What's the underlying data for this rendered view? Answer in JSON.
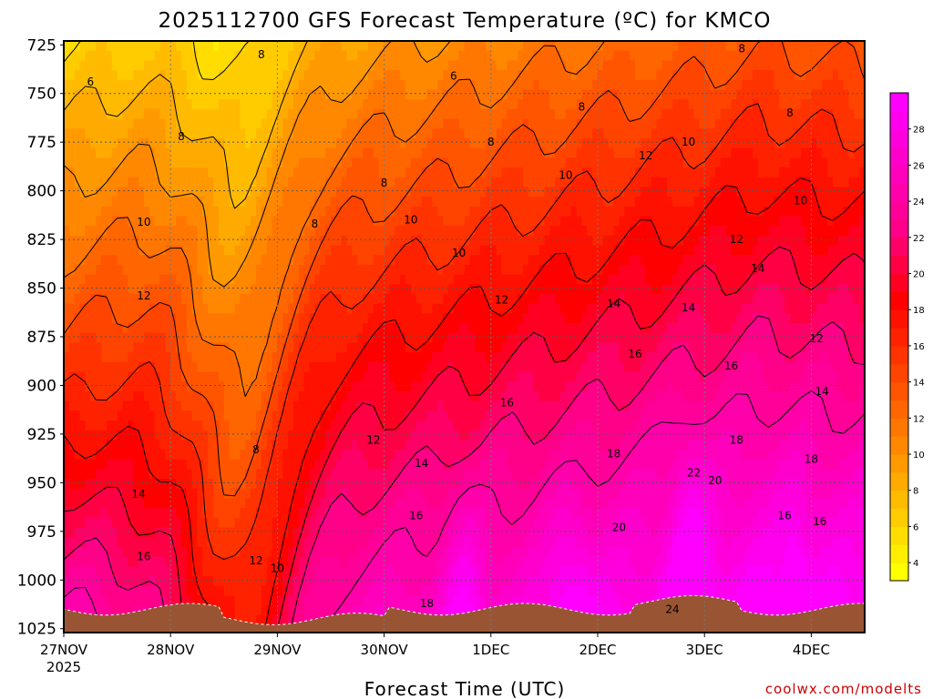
{
  "chart_data": {
    "type": "heatmap",
    "title": "2025112700 GFS Forecast Temperature (ºC) for KMCO",
    "xlabel": "Forecast Time (UTC)",
    "ylabel": "",
    "credit": "coolwx.com/modelts",
    "y_ticks": [
      "725",
      "750",
      "775",
      "800",
      "825",
      "850",
      "875",
      "900",
      "925",
      "950",
      "975",
      "1000",
      "1025"
    ],
    "y_values": [
      725,
      750,
      775,
      800,
      825,
      850,
      875,
      900,
      925,
      950,
      975,
      1000,
      1025
    ],
    "ylim": [
      1027,
      723
    ],
    "x_ticks": [
      "27NOV",
      "28NOV",
      "29NOV",
      "30NOV",
      "1DEC",
      "2DEC",
      "3DEC",
      "4DEC"
    ],
    "x_year": "2025",
    "xlim_days": [
      0,
      7.5
    ],
    "grid": true,
    "colorbar": {
      "ticks": [
        "4",
        "6",
        "8",
        "10",
        "12",
        "14",
        "16",
        "18",
        "20",
        "22",
        "24",
        "26",
        "28"
      ],
      "levels": [
        3,
        4,
        5,
        6,
        7,
        8,
        9,
        10,
        11,
        12,
        13,
        14,
        15,
        16,
        17,
        18,
        19,
        20,
        21,
        22,
        23,
        24,
        25,
        26,
        27,
        28,
        29,
        30
      ],
      "colors": [
        "#ffff00",
        "#ffee00",
        "#ffdd00",
        "#ffcc00",
        "#ffbb00",
        "#ffaa00",
        "#ff9900",
        "#ff8800",
        "#ff7700",
        "#ff6600",
        "#ff5500",
        "#ff4400",
        "#ff3300",
        "#ff2200",
        "#ff1100",
        "#ff0000",
        "#ff0022",
        "#ff0044",
        "#ff0066",
        "#ff0088",
        "#ff0099",
        "#ff00aa",
        "#ff00bb",
        "#ff00cc",
        "#ff00dd",
        "#ff00ee",
        "#ff00ff"
      ]
    },
    "ground_color": "#995533",
    "contour_labels": [
      {
        "t": 0.25,
        "p": 744,
        "v": "6"
      },
      {
        "t": 1.85,
        "p": 730,
        "v": "8"
      },
      {
        "t": 3.65,
        "p": 741,
        "v": "6"
      },
      {
        "t": 6.35,
        "p": 727,
        "v": "8"
      },
      {
        "t": 1.1,
        "p": 772,
        "v": "8"
      },
      {
        "t": 4.85,
        "p": 757,
        "v": "8"
      },
      {
        "t": 6.8,
        "p": 760,
        "v": "8"
      },
      {
        "t": 3.0,
        "p": 796,
        "v": "8"
      },
      {
        "t": 2.35,
        "p": 817,
        "v": "8"
      },
      {
        "t": 4.0,
        "p": 775,
        "v": "8"
      },
      {
        "t": 0.75,
        "p": 816,
        "v": "10"
      },
      {
        "t": 3.25,
        "p": 815,
        "v": "10"
      },
      {
        "t": 4.7,
        "p": 792,
        "v": "10"
      },
      {
        "t": 5.85,
        "p": 775,
        "v": "10"
      },
      {
        "t": 6.9,
        "p": 805,
        "v": "10"
      },
      {
        "t": 3.7,
        "p": 832,
        "v": "10"
      },
      {
        "t": 0.75,
        "p": 854,
        "v": "12"
      },
      {
        "t": 5.45,
        "p": 782,
        "v": "12"
      },
      {
        "t": 6.3,
        "p": 825,
        "v": "12"
      },
      {
        "t": 4.1,
        "p": 856,
        "v": "12"
      },
      {
        "t": 7.05,
        "p": 876,
        "v": "12"
      },
      {
        "t": 2.9,
        "p": 928,
        "v": "12"
      },
      {
        "t": 5.15,
        "p": 858,
        "v": "14"
      },
      {
        "t": 5.85,
        "p": 860,
        "v": "14"
      },
      {
        "t": 6.5,
        "p": 840,
        "v": "14"
      },
      {
        "t": 3.35,
        "p": 940,
        "v": "14"
      },
      {
        "t": 0.7,
        "p": 956,
        "v": "14"
      },
      {
        "t": 7.1,
        "p": 903,
        "v": "14"
      },
      {
        "t": 5.35,
        "p": 884,
        "v": "16"
      },
      {
        "t": 6.25,
        "p": 890,
        "v": "16"
      },
      {
        "t": 4.15,
        "p": 909,
        "v": "16"
      },
      {
        "t": 3.3,
        "p": 967,
        "v": "16"
      },
      {
        "t": 0.75,
        "p": 988,
        "v": "16"
      },
      {
        "t": 6.75,
        "p": 967,
        "v": "16"
      },
      {
        "t": 7.08,
        "p": 970,
        "v": "16"
      },
      {
        "t": 5.15,
        "p": 935,
        "v": "18"
      },
      {
        "t": 6.3,
        "p": 928,
        "v": "18"
      },
      {
        "t": 7.0,
        "p": 938,
        "v": "18"
      },
      {
        "t": 3.4,
        "p": 1012,
        "v": "18"
      },
      {
        "t": 5.2,
        "p": 973,
        "v": "20"
      },
      {
        "t": 6.1,
        "p": 949,
        "v": "20"
      },
      {
        "t": 5.9,
        "p": 945,
        "v": "22"
      },
      {
        "t": 5.7,
        "p": 1015,
        "v": "24"
      },
      {
        "t": 1.8,
        "p": 990,
        "v": "12"
      },
      {
        "t": 2.0,
        "p": 994,
        "v": "10"
      },
      {
        "t": 1.8,
        "p": 933,
        "v": "8"
      }
    ]
  }
}
